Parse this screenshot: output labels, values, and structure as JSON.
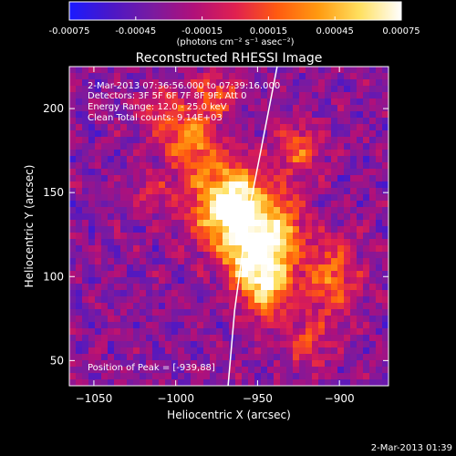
{
  "colorbar": {
    "ticks": [
      "-0.00075",
      "-0.00045",
      "-0.00015",
      "0.00015",
      "0.00045",
      "0.00075"
    ],
    "tick_values": [
      -0.00075,
      -0.00045,
      -0.00015,
      0.00015,
      0.00045,
      0.00075
    ],
    "units_label": "(photons cm⁻² s⁻¹ asec⁻²)",
    "stops": [
      "#1a1aff",
      "#4a18c8",
      "#7a1aa0",
      "#b0107a",
      "#e02050",
      "#ff5a10",
      "#ff9a10",
      "#ffe060",
      "#ffffff"
    ]
  },
  "chart_data": {
    "type": "heatmap",
    "title": "Reconstructed RHESSI Image",
    "xlabel": "Heliocentric X (arcsec)",
    "ylabel": "Heliocentric Y (arcsec)",
    "xlim": [
      -1065,
      -870
    ],
    "ylim": [
      35,
      225
    ],
    "xticks": [
      -1050,
      -1000,
      -950,
      -900
    ],
    "yticks": [
      50,
      100,
      150,
      200
    ],
    "xtick_labels": [
      "−1050",
      "−1000",
      "−950",
      "−900"
    ],
    "ytick_labels": [
      "50",
      "100",
      "150",
      "200"
    ],
    "info_lines": [
      "2-Mar-2013 07:36:56.000 to 07:39:16.000",
      "Detectors: 3F 5F 6F 7F 8F 9F; Att 0",
      "Energy Range: 12.0 - 25.0 keV",
      "Clean      Total counts: 9.14E+03"
    ],
    "peak_label": "Position of Peak = [-939,88]",
    "peak": [
      -939,
      88
    ],
    "limb_curve": [
      [
        -968,
        35
      ],
      [
        -964,
        80
      ],
      [
        -957,
        130
      ],
      [
        -948,
        175
      ],
      [
        -938,
        225
      ]
    ],
    "emission_blobs": [
      {
        "x": -990,
        "y": 180,
        "sx": 12,
        "sy": 14,
        "a": 0.7
      },
      {
        "x": -975,
        "y": 140,
        "sx": 14,
        "sy": 16,
        "a": 0.8
      },
      {
        "x": -960,
        "y": 150,
        "sx": 12,
        "sy": 14,
        "a": 0.75
      },
      {
        "x": -955,
        "y": 118,
        "sx": 13,
        "sy": 14,
        "a": 1.0
      },
      {
        "x": -945,
        "y": 95,
        "sx": 12,
        "sy": 14,
        "a": 0.95
      },
      {
        "x": -935,
        "y": 130,
        "sx": 10,
        "sy": 14,
        "a": 0.7
      },
      {
        "x": -925,
        "y": 175,
        "sx": 10,
        "sy": 12,
        "a": 0.55
      },
      {
        "x": -905,
        "y": 100,
        "sx": 12,
        "sy": 18,
        "a": 0.6
      },
      {
        "x": -920,
        "y": 60,
        "sx": 10,
        "sy": 10,
        "a": 0.45
      },
      {
        "x": -1010,
        "y": 200,
        "sx": 10,
        "sy": 10,
        "a": 0.45
      },
      {
        "x": -1015,
        "y": 150,
        "sx": 8,
        "sy": 8,
        "a": 0.35
      },
      {
        "x": -975,
        "y": 210,
        "sx": 9,
        "sy": 9,
        "a": 0.5
      }
    ]
  },
  "footer_date": "2-Mar-2013 01:39"
}
